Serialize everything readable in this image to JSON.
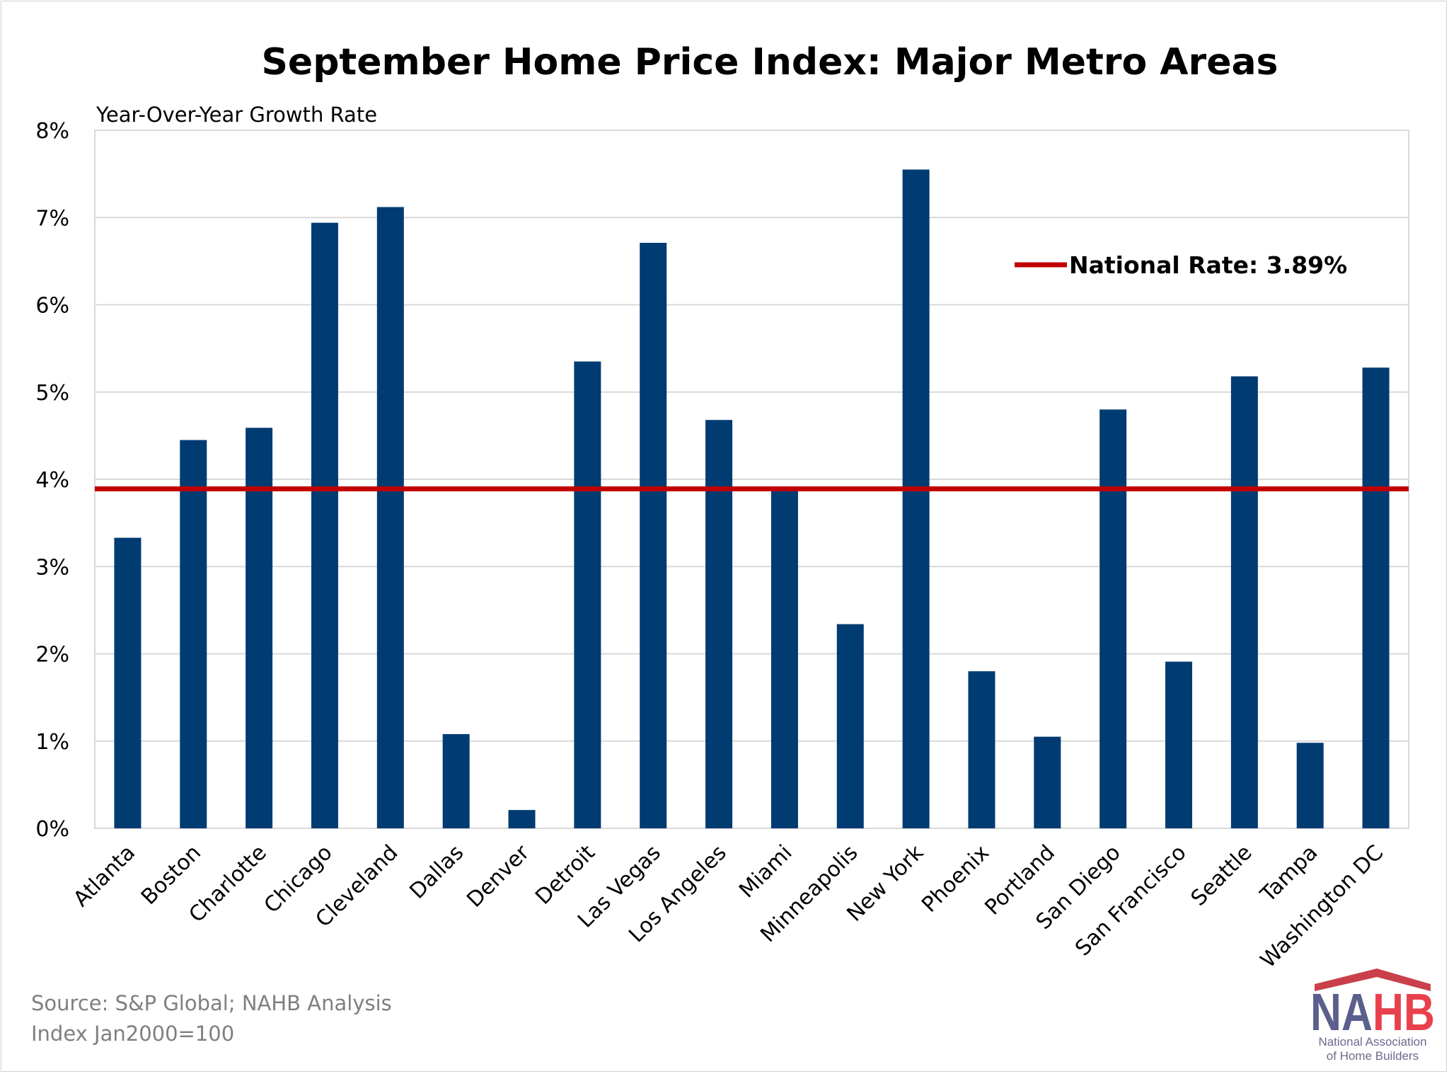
{
  "chart_data": {
    "type": "bar",
    "title": "September Home Price Index: Major Metro Areas",
    "ylabel": "Year-Over-Year Growth Rate",
    "xlabel": "",
    "ylim": [
      0,
      8
    ],
    "yticks": [
      "0%",
      "1%",
      "2%",
      "3%",
      "4%",
      "5%",
      "6%",
      "7%",
      "8%"
    ],
    "grid": true,
    "categories": [
      "Atlanta",
      "Boston",
      "Charlotte",
      "Chicago",
      "Cleveland",
      "Dallas",
      "Denver",
      "Detroit",
      "Las Vegas",
      "Los Angeles",
      "Miami",
      "Minneapolis",
      "New York",
      "Phoenix",
      "Portland",
      "San Diego",
      "San Francisco",
      "Seattle",
      "Tampa",
      "Washington DC"
    ],
    "values": [
      3.33,
      4.45,
      4.59,
      6.94,
      7.12,
      1.08,
      0.21,
      5.35,
      6.71,
      4.68,
      3.87,
      2.34,
      7.55,
      1.8,
      1.05,
      4.8,
      1.91,
      5.18,
      0.98,
      5.28
    ],
    "bar_color": "#003b72",
    "reference_line": {
      "label": "National Rate: 3.89%",
      "value": 3.89,
      "color": "#c00000"
    },
    "legend_position": "top-right"
  },
  "footer": {
    "source": "Source: S&P Global; NAHB Analysis",
    "index_note": "Index Jan2000=100"
  },
  "logo": {
    "name": "NAHB",
    "line1": "National Association",
    "line2": "of Home Builders",
    "colors": {
      "navy": "#5a5f8c",
      "red": "#e8414d",
      "roof": "#c9404a"
    }
  }
}
